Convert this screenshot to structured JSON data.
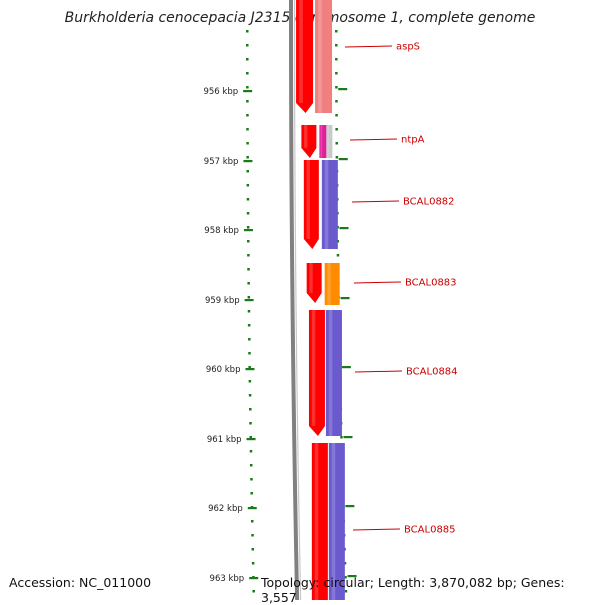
{
  "title": "Burkholderia cenocepacia J2315 chromosome 1, complete genome",
  "footer": {
    "accession": "Accession: NC_011000",
    "topology": "Topology: circular; Length: 3,870,082 bp; Genes: 3,557"
  },
  "ticks": [
    "956 kbp",
    "957 kbp",
    "958 kbp",
    "959 kbp",
    "960 kbp",
    "961 kbp",
    "962 kbp",
    "963 kbp"
  ],
  "genes": [
    "aspS",
    "ntpA",
    "BCAL0882",
    "BCAL0883",
    "BCAL0884",
    "BCAL0885"
  ],
  "colors": {
    "tick": "#1a7a1a",
    "label": "#cc0000",
    "red": "#ff0000",
    "pink": "#f08080",
    "purple": "#6a5acd",
    "orange": "#ff8c00",
    "magenta": "#e0209a",
    "backbone": "#808080"
  }
}
